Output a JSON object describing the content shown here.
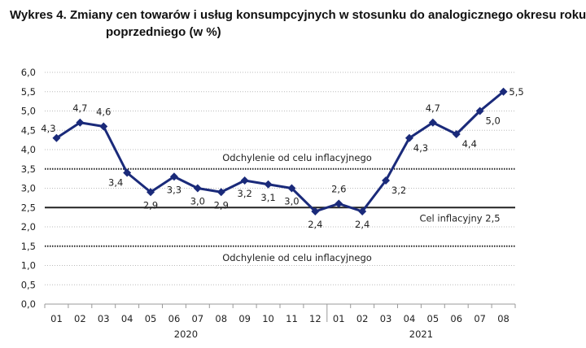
{
  "chart_data": {
    "type": "line",
    "title_line1": "Wykres 4. Zmiany cen towarów i usług konsumpcyjnych w stosunku do analogicznego okresu roku",
    "title_line2": "poprzedniego (w %)",
    "xlabel": "",
    "ylabel": "",
    "ylim": [
      0,
      6
    ],
    "yticks": [
      "0,0",
      "0,5",
      "1,0",
      "1,5",
      "2,0",
      "2,5",
      "3,0",
      "3,5",
      "4,0",
      "4,5",
      "5,0",
      "5,5",
      "6,0"
    ],
    "categories": [
      "01",
      "02",
      "03",
      "04",
      "05",
      "06",
      "07",
      "08",
      "09",
      "10",
      "11",
      "12",
      "01",
      "02",
      "03",
      "04",
      "05",
      "06",
      "07",
      "08"
    ],
    "years": [
      {
        "label": "2020"
      },
      {
        "label": "2021"
      }
    ],
    "values": [
      4.3,
      4.7,
      4.6,
      3.4,
      2.9,
      3.3,
      3.0,
      2.9,
      3.2,
      3.1,
      3.0,
      2.4,
      2.6,
      2.4,
      3.2,
      4.3,
      4.7,
      4.4,
      5.0,
      5.5
    ],
    "data_labels": [
      "4,3",
      "4,7",
      "4,6",
      "3,4",
      "2,9",
      "3,3",
      "3,0",
      "2,9",
      "3,2",
      "3,1",
      "3,0",
      "2,4",
      "2,6",
      "2,4",
      "3,2",
      "4,3",
      "4,7",
      "4,4",
      "5,0",
      "5,5"
    ],
    "grid": true,
    "series_color": "#1a2a7a",
    "reference_lines": [
      {
        "value": 3.5,
        "style": "dotted",
        "label": "Odchylenie od celu inflacyjnego"
      },
      {
        "value": 2.5,
        "style": "solid",
        "label": "Cel inflacyjny 2,5"
      },
      {
        "value": 1.5,
        "style": "dotted",
        "label": "Odchylenie od celu inflacyjnego"
      }
    ]
  }
}
